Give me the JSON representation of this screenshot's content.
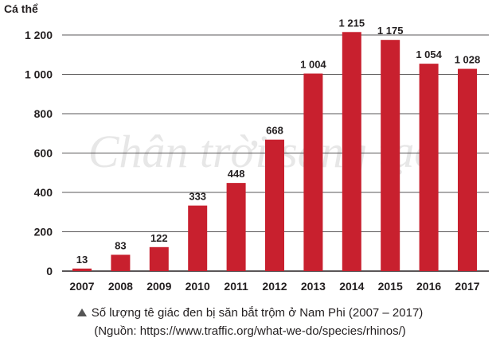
{
  "chart_data": {
    "type": "bar",
    "ylabel": "Cá thể",
    "categories": [
      "2007",
      "2008",
      "2009",
      "2010",
      "2011",
      "2012",
      "2013",
      "2014",
      "2015",
      "2016",
      "2017"
    ],
    "values": [
      13,
      83,
      122,
      333,
      448,
      668,
      1004,
      1215,
      1175,
      1054,
      1028
    ],
    "value_labels": [
      "13",
      "83",
      "122",
      "333",
      "448",
      "668",
      "1 004",
      "1 215",
      "1 175",
      "1 054",
      "1 028"
    ],
    "ylim": [
      0,
      1200
    ],
    "yticks": [
      0,
      200,
      400,
      600,
      800,
      1000,
      1200
    ],
    "ytick_labels": [
      "0",
      "200",
      "400",
      "600",
      "800",
      "1 000",
      "1 200"
    ],
    "grid": true,
    "bar_color": "#c8202e"
  },
  "watermark": "Chân trời sáng tạo",
  "caption": {
    "title": "Số lượng tê giác đen bị săn bắt trộm ở Nam Phi (2007 – 2017)",
    "source": "(Nguồn: https://www.traffic.org/what-we-do/species/rhinos/)"
  }
}
